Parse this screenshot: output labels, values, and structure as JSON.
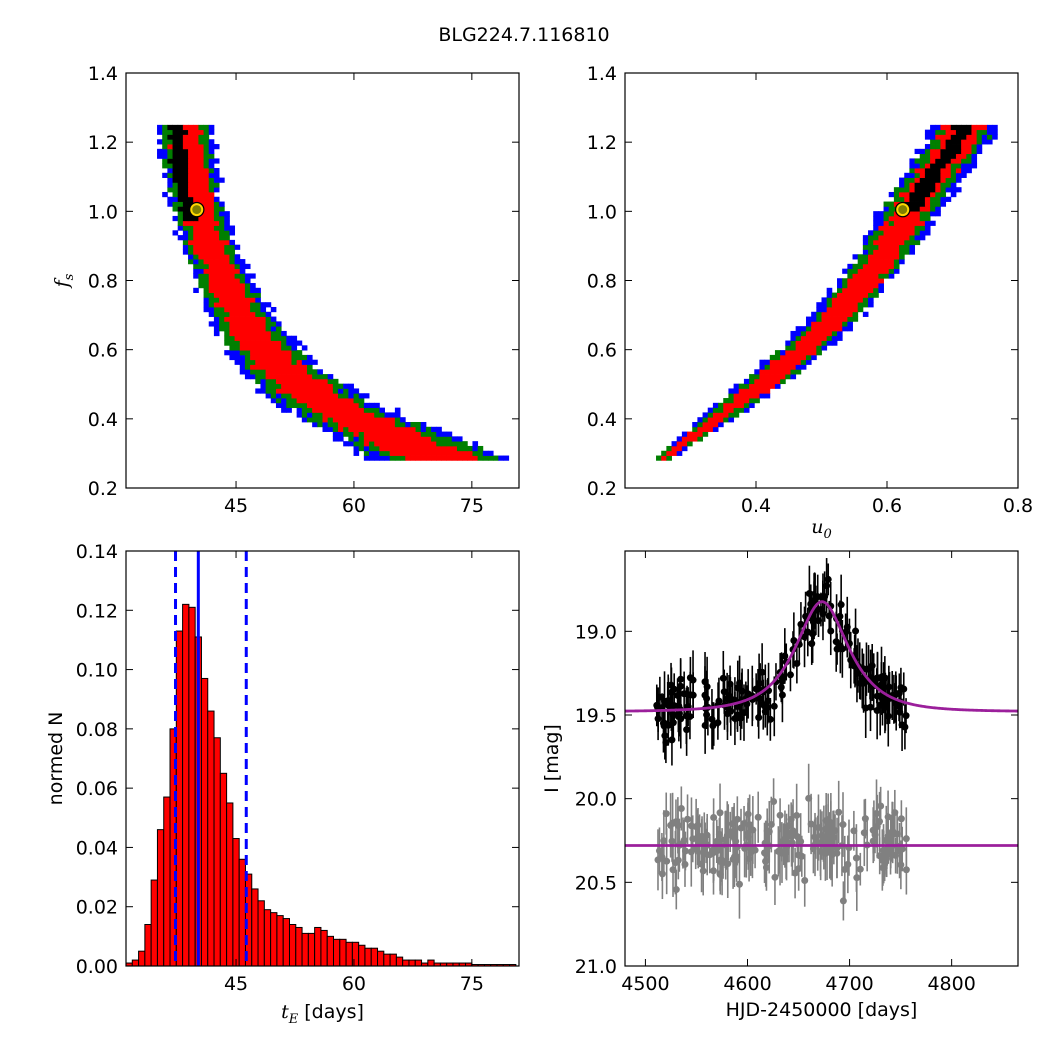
{
  "figure": {
    "title": "BLG224.7.116810"
  },
  "chart_data": [
    {
      "id": "tl",
      "type": "heatmap",
      "xlabel": "",
      "ylabel_main": "f",
      "ylabel_sub": "s",
      "xlim": [
        31,
        81
      ],
      "ylim": [
        0.2,
        1.4
      ],
      "xticks": [
        45,
        60,
        75
      ],
      "yticks": [
        0.2,
        0.4,
        0.6,
        0.8,
        1.0,
        1.2,
        1.4
      ],
      "ytick_labels": [
        "0.2",
        "0.4",
        "0.6",
        "0.8",
        "1.0",
        "1.2",
        "1.4"
      ],
      "levels": [
        "black",
        "red",
        "green",
        "blue"
      ],
      "level_colors": [
        "#000000",
        "#ff0000",
        "#007f00",
        "#0000ff"
      ],
      "best_fit": {
        "x": 40.0,
        "y": 1.005
      },
      "region": {
        "type": "band",
        "ymin": 0.28,
        "ymax": 1.25,
        "center": [
          [
            0.28,
            71.5
          ],
          [
            0.35,
            65.0
          ],
          [
            0.45,
            56.0
          ],
          [
            0.55,
            50.5
          ],
          [
            0.65,
            47.0
          ],
          [
            0.75,
            44.5
          ],
          [
            0.85,
            42.5
          ],
          [
            0.95,
            40.8
          ],
          [
            1.05,
            39.6
          ],
          [
            1.15,
            38.9
          ],
          [
            1.25,
            38.6
          ]
        ],
        "halfwidth": [
          [
            0.28,
            8.0
          ],
          [
            0.4,
            6.0
          ],
          [
            0.6,
            4.2
          ],
          [
            0.8,
            3.2
          ],
          [
            1.0,
            3.0
          ],
          [
            1.25,
            3.2
          ]
        ],
        "black_ymin": 0.97,
        "black_center_offset": -1.2
      }
    },
    {
      "id": "tr",
      "type": "heatmap",
      "xlabel_main": "u",
      "xlabel_sub": "0",
      "ylabel": "",
      "xlim": [
        0.2,
        0.8
      ],
      "ylim": [
        0.2,
        1.4
      ],
      "xticks": [
        0.4,
        0.6,
        0.8
      ],
      "xtick_labels": [
        "0.4",
        "0.6",
        "0.8"
      ],
      "yticks": [
        0.2,
        0.4,
        0.6,
        0.8,
        1.0,
        1.2,
        1.4
      ],
      "ytick_labels": [
        "0.2",
        "0.4",
        "0.6",
        "0.8",
        "1.0",
        "1.2",
        "1.4"
      ],
      "levels": [
        "black",
        "red",
        "green",
        "blue"
      ],
      "level_colors": [
        "#000000",
        "#ff0000",
        "#007f00",
        "#0000ff"
      ],
      "best_fit": {
        "x": 0.624,
        "y": 1.005
      },
      "region": {
        "type": "band",
        "ymin": 0.28,
        "ymax": 1.25,
        "center": [
          [
            0.28,
            0.255
          ],
          [
            0.4,
            0.34
          ],
          [
            0.5,
            0.41
          ],
          [
            0.6,
            0.47
          ],
          [
            0.7,
            0.525
          ],
          [
            0.8,
            0.565
          ],
          [
            0.9,
            0.605
          ],
          [
            1.0,
            0.635
          ],
          [
            1.1,
            0.67
          ],
          [
            1.2,
            0.705
          ],
          [
            1.25,
            0.72
          ]
        ],
        "halfwidth": [
          [
            0.28,
            0.012
          ],
          [
            0.5,
            0.03
          ],
          [
            0.8,
            0.035
          ],
          [
            1.0,
            0.04
          ],
          [
            1.25,
            0.045
          ]
        ],
        "black_ymin": 1.0,
        "black_center_offset": 0.0
      }
    },
    {
      "id": "bl",
      "type": "bar",
      "xlabel_main": "t",
      "xlabel_sub": "E",
      "xlabel_suffix": " [days]",
      "ylabel": "normed N",
      "xlim": [
        31,
        81
      ],
      "ylim": [
        0,
        0.14
      ],
      "xticks": [
        45,
        60,
        75
      ],
      "yticks": [
        0.0,
        0.02,
        0.04,
        0.06,
        0.08,
        0.1,
        0.12,
        0.14
      ],
      "ytick_labels": [
        "0.00",
        "0.02",
        "0.04",
        "0.06",
        "0.08",
        "0.10",
        "0.12",
        "0.14"
      ],
      "bin_start": 31.0,
      "bin_width": 0.8,
      "values": [
        0.001,
        0.002,
        0.005,
        0.014,
        0.029,
        0.046,
        0.057,
        0.08,
        0.113,
        0.122,
        0.121,
        0.111,
        0.097,
        0.086,
        0.077,
        0.065,
        0.055,
        0.043,
        0.036,
        0.031,
        0.026,
        0.022,
        0.019,
        0.018,
        0.017,
        0.016,
        0.014,
        0.013,
        0.011,
        0.011,
        0.013,
        0.012,
        0.01,
        0.009,
        0.009,
        0.008,
        0.008,
        0.007,
        0.006,
        0.006,
        0.005,
        0.004,
        0.004,
        0.003,
        0.002,
        0.002,
        0.002,
        0.001,
        0.002,
        0.001,
        0.001,
        0.001,
        0.001,
        0.001,
        0.001,
        0.0005,
        0.0005,
        0.0005,
        0.0005,
        0.0005,
        0.0005,
        0.0005
      ],
      "bar_color": "#ff0000",
      "median_line": 40.2,
      "interval_lines": [
        37.3,
        46.3
      ],
      "line_color": "#0000ff"
    },
    {
      "id": "br",
      "type": "scatter",
      "xlabel": "HJD-2450000 [days]",
      "ylabel": "I [mag]",
      "xlim": [
        4480,
        4865
      ],
      "ylim": [
        21.0,
        18.52
      ],
      "xticks": [
        4500,
        4600,
        4700,
        4800
      ],
      "xtick_labels": [
        "4500",
        "4600",
        "4700",
        "4800"
      ],
      "yticks": [
        19.0,
        19.5,
        20.0,
        20.5,
        21.0
      ],
      "ytick_labels": [
        "19.0",
        "19.5",
        "20.0",
        "20.5",
        "21.0"
      ],
      "series": [
        {
          "color": "#000000",
          "baseline": 19.48,
          "x_start": 4510,
          "x_end": 4757,
          "n": 210,
          "scatter": 0.15,
          "errbar": 0.14
        },
        {
          "color": "#808080",
          "baseline": 20.28,
          "x_start": 4512,
          "x_end": 4757,
          "n": 210,
          "scatter": 0.17,
          "errbar": 0.16
        }
      ],
      "model": {
        "color": "#9b1f9b",
        "baseline": 19.48,
        "t0": 4673,
        "tE": 40.2,
        "u0": 0.624,
        "fs": 1.005,
        "flat_mag": 20.28
      }
    }
  ]
}
